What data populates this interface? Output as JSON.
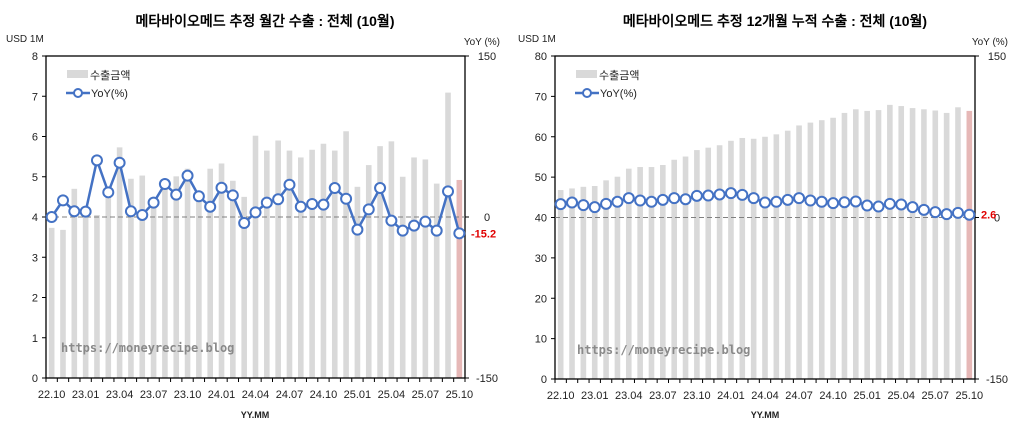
{
  "colors": {
    "bar": "#d9d9d9",
    "bar_highlight": "#e6b8b7",
    "line": "#4472c4",
    "last_label": "#ff0000",
    "zero_line": "#808080"
  },
  "chart_data": [
    {
      "type": "bar+line",
      "title": "메타바이오메드 추정 월간 수출 : 전체 (10월)",
      "ylabel": "USD 1M",
      "y2label": "YoY (%)",
      "xlabel": "YY.MM",
      "ylim": [
        0,
        8
      ],
      "yticks": [
        "0",
        "1",
        "2",
        "3",
        "4",
        "5",
        "6",
        "7",
        "8"
      ],
      "y2lim": [
        -150,
        150
      ],
      "y2ticks": [
        "-150",
        "0",
        "150"
      ],
      "grid": false,
      "legend_position": "top-left",
      "watermark": "https://moneyrecipe.blog",
      "xticklabels": [
        "22.10",
        "23.01",
        "23.04",
        "23.07",
        "23.10",
        "24.01",
        "24.04",
        "24.07",
        "24.10",
        "25.01",
        "25.04",
        "25.07",
        "25.10"
      ],
      "categories": [
        "22.10",
        "22.11",
        "22.12",
        "23.01",
        "23.02",
        "23.03",
        "23.04",
        "23.05",
        "23.06",
        "23.07",
        "23.08",
        "23.09",
        "23.10",
        "23.11",
        "23.12",
        "24.01",
        "24.02",
        "24.03",
        "24.04",
        "24.05",
        "24.06",
        "24.07",
        "24.08",
        "24.09",
        "24.10",
        "24.11",
        "24.12",
        "25.01",
        "25.02",
        "25.03",
        "25.04",
        "25.05",
        "25.06",
        "25.07",
        "25.08",
        "25.09",
        "25.10"
      ],
      "series": [
        {
          "name": "수출금액",
          "type": "bar",
          "axis": "left",
          "values": [
            3.73,
            3.68,
            4.7,
            4.1,
            4.05,
            4.5,
            5.73,
            4.95,
            5.03,
            4.4,
            4.8,
            5.01,
            5.2,
            4.5,
            5.2,
            5.33,
            4.9,
            4.5,
            6.02,
            5.65,
            5.9,
            5.65,
            5.48,
            5.67,
            5.82,
            5.65,
            6.13,
            4.75,
            5.29,
            5.76,
            5.88,
            5.0,
            5.48,
            5.43,
            4.83,
            7.09,
            4.92
          ]
        },
        {
          "name": "YoY(%)",
          "type": "line",
          "axis": "right",
          "values": [
            0,
            15.5,
            5.3,
            5,
            52.8,
            23,
            50.6,
            5.3,
            1.9,
            13.4,
            30.7,
            20.8,
            38.5,
            19.3,
            9.6,
            27.3,
            20.2,
            -5.6,
            4.3,
            13.4,
            16.5,
            30.1,
            9.6,
            12.1,
            11.5,
            27,
            17,
            -11.8,
            7.1,
            27,
            -3.4,
            -12.7,
            -8,
            -4.3,
            -12.7,
            23.9,
            -15.2
          ]
        }
      ],
      "last_label": "-15.2"
    },
    {
      "type": "bar+line",
      "title": "메타바이오메드 추정 12개월 누적 수출 : 전체 (10월)",
      "ylabel": "USD 1M",
      "y2label": "YoY (%)",
      "xlabel": "YY.MM",
      "ylim": [
        0,
        80
      ],
      "yticks": [
        "0",
        "10",
        "20",
        "30",
        "40",
        "50",
        "60",
        "70",
        "80"
      ],
      "y2lim": [
        -150,
        150
      ],
      "y2ticks": [
        "-150",
        "0",
        "150"
      ],
      "grid": false,
      "legend_position": "top-left",
      "watermark": "https://moneyrecipe.blog",
      "xticklabels": [
        "22.10",
        "23.01",
        "23.04",
        "23.07",
        "23.10",
        "24.01",
        "24.04",
        "24.07",
        "24.10",
        "25.01",
        "25.04",
        "25.07",
        "25.10"
      ],
      "categories": [
        "22.10",
        "22.11",
        "22.12",
        "23.01",
        "23.02",
        "23.03",
        "23.04",
        "23.05",
        "23.06",
        "23.07",
        "23.08",
        "23.09",
        "23.10",
        "23.11",
        "23.12",
        "24.01",
        "24.02",
        "24.03",
        "24.04",
        "24.05",
        "24.06",
        "24.07",
        "24.08",
        "24.09",
        "24.10",
        "24.11",
        "24.12",
        "25.01",
        "25.02",
        "25.03",
        "25.04",
        "25.05",
        "25.06",
        "25.07",
        "25.08",
        "25.09",
        "25.10"
      ],
      "series": [
        {
          "name": "수출금액",
          "type": "bar",
          "axis": "left",
          "values": [
            46.8,
            47.2,
            47.6,
            47.8,
            49.2,
            50.1,
            52.1,
            52.5,
            52.5,
            53.0,
            54.3,
            55.1,
            56.7,
            57.3,
            57.9,
            59.0,
            59.7,
            59.5,
            60.0,
            60.6,
            61.5,
            62.8,
            63.5,
            64.1,
            64.7,
            65.9,
            66.8,
            66.4,
            66.6,
            67.9,
            67.6,
            67.1,
            66.8,
            66.5,
            65.9,
            67.3,
            66.4
          ]
        },
        {
          "name": "YoY(%)",
          "type": "line",
          "axis": "right",
          "values": [
            12.4,
            13.9,
            11.5,
            9.6,
            12.7,
            14.6,
            18,
            15.8,
            14.6,
            16.4,
            18,
            17,
            20.1,
            20.4,
            21.4,
            22.6,
            21,
            18,
            13.9,
            14.6,
            16.4,
            18,
            15.8,
            14.6,
            13.3,
            14.2,
            14.9,
            11.1,
            10.2,
            12.7,
            12.1,
            9.6,
            7.1,
            5,
            3.1,
            4.3,
            2.6
          ]
        }
      ],
      "last_label": "2.6"
    }
  ]
}
